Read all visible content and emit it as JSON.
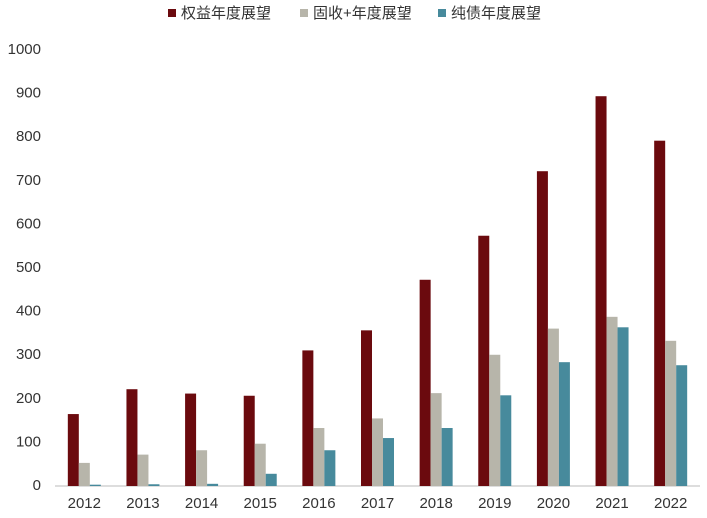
{
  "chart_data": {
    "type": "bar",
    "categories": [
      "2012",
      "2013",
      "2014",
      "2015",
      "2016",
      "2017",
      "2018",
      "2019",
      "2020",
      "2021",
      "2022"
    ],
    "series": [
      {
        "name": "权益年度展望",
        "color": "#6b0a0e",
        "values": [
          165,
          222,
          212,
          207,
          311,
          357,
          473,
          574,
          722,
          894,
          792
        ]
      },
      {
        "name": "固收+年度展望",
        "color": "#b7b5aa",
        "values": [
          53,
          72,
          82,
          97,
          133,
          155,
          213,
          301,
          361,
          388,
          333
        ]
      },
      {
        "name": "纯债年度展望",
        "color": "#478a9c",
        "values": [
          3,
          4,
          5,
          28,
          82,
          110,
          133,
          208,
          284,
          364,
          277
        ]
      }
    ],
    "ylim": [
      0,
      1000
    ],
    "yticks": [
      0,
      100,
      200,
      300,
      400,
      500,
      600,
      700,
      800,
      900,
      1000
    ],
    "grid": false,
    "legend": "top"
  }
}
